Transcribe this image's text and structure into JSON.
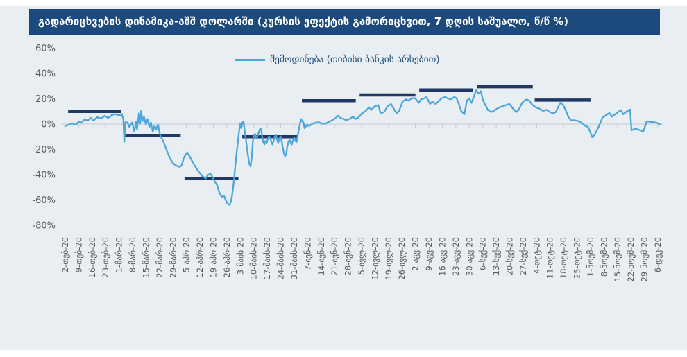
{
  "title": "გადარიცხვების დინამიკა-აშშ დოლარში (კურსის ეფექტის გამორიცხვით, 7 დღის საშუალო, წ/წ %)",
  "legend": {
    "label": "შემოდინება (თიბისი ბანკის არხებით)"
  },
  "colors": {
    "page": "#ffffff",
    "background": "#e9eef3",
    "title_bar": "#1d4a7c",
    "title_text": "#ffffff",
    "series_line": "#4ba6d9",
    "avg_segment": "#1f3864",
    "axis_text": "#595959",
    "axis_line": "#c3cad1",
    "legend_text": "#1f4e79"
  },
  "chart_data": {
    "type": "line",
    "title": "გადარიცხვების დინამიკა-აშშ დოლარში (კურსის ეფექტის გამორიცხვით, 7 დღის საშუალო, წ/წ %)",
    "legend_position": "top-center",
    "grid": "zero-line-only",
    "y_tick_suffix": "%",
    "y_ticks": [
      60,
      40,
      20,
      0,
      -20,
      -40,
      -60,
      -80
    ],
    "ylim": [
      -80,
      65
    ],
    "x_unit": "days from first label (weekly tick spacing = 7 days)",
    "x_tick_labels": [
      "2-თებ-20",
      "9-თებ-20",
      "16-თებ-20",
      "23-თებ-20",
      "1-მარ-20",
      "8-მარ-20",
      "15-მარ-20",
      "22-მარ-20",
      "29-მარ-20",
      "5-აპრ-20",
      "12-აპრ-20",
      "19-აპრ-20",
      "26-აპრ-20",
      "3-მაის-20",
      "10-მაის-20",
      "17-მაის-20",
      "24-მაის-20",
      "31-მაის-20",
      "7-ივნ-20",
      "14-ივნ-20",
      "21-ივნ-20",
      "28-ივნ-20",
      "5-ივლ-20",
      "12-ივლ-20",
      "19-ივლ-20",
      "26-ივლ-20",
      "2-აგვ-20",
      "9-აგვ-20",
      "16-აგვ-20",
      "23-აგვ-20",
      "30-აგვ-20",
      "6-სექ-20",
      "13-სექ-20",
      "20-სექ-20",
      "27-სექ-20",
      "4-ოქტ-20",
      "11-ოქტ-20",
      "18-ოქტ-20",
      "25-ოქტ-20",
      "1-ნოემ-20",
      "8-ნოემ-20",
      "15-ნოემ-20",
      "22-ნოემ-20",
      "29-ნოემ-20",
      "6-დეკ-20"
    ],
    "monthly_average_segments": {
      "description": "dark navy horizontal bars = monthly average level (%)",
      "color": "#1f3864",
      "segments": [
        {
          "month": "თებერვალი",
          "from_day": 1.5,
          "to_day": 29,
          "value": 10
        },
        {
          "month": "მარტი",
          "from_day": 31,
          "to_day": 60,
          "value": -9
        },
        {
          "month": "აპრილი",
          "from_day": 62,
          "to_day": 90,
          "value": -43
        },
        {
          "month": "მაისი",
          "from_day": 92,
          "to_day": 121,
          "value": -10
        },
        {
          "month": "ივნისი",
          "from_day": 123,
          "to_day": 151,
          "value": 18.5
        },
        {
          "month": "ივლისი",
          "from_day": 153,
          "to_day": 182,
          "value": 23
        },
        {
          "month": "აგვისტო",
          "from_day": 184,
          "to_day": 212,
          "value": 27
        },
        {
          "month": "სექტემბერი",
          "from_day": 214,
          "to_day": 243,
          "value": 29.5
        },
        {
          "month": "ოქტომბერი",
          "from_day": 244,
          "to_day": 273,
          "value": 19
        }
      ]
    },
    "series": [
      {
        "name": "შემოდინება (თიბისი ბანკის არხებით)",
        "color": "#4ba6d9",
        "points": [
          [
            0,
            -1.5
          ],
          [
            1.8,
            -0.5
          ],
          [
            3.6,
            0.5
          ],
          [
            5.4,
            -0.5
          ],
          [
            7.2,
            2.2
          ],
          [
            8.3,
            1
          ],
          [
            10.1,
            3.8
          ],
          [
            11.5,
            2.7
          ],
          [
            13.3,
            4.9
          ],
          [
            14.7,
            2.7
          ],
          [
            16.5,
            5.5
          ],
          [
            18.7,
            4.4
          ],
          [
            20.5,
            6.6
          ],
          [
            22.3,
            4.9
          ],
          [
            24.1,
            7.1
          ],
          [
            26.2,
            7.8
          ],
          [
            28,
            6.8
          ],
          [
            29.4,
            8
          ],
          [
            30.2,
            4
          ],
          [
            30.7,
            -14
          ],
          [
            31.2,
            1.5
          ],
          [
            32.3,
            1.3
          ],
          [
            33.4,
            -2.4
          ],
          [
            34.8,
            1.3
          ],
          [
            35.9,
            -6
          ],
          [
            36.9,
            2.2
          ],
          [
            37.3,
            -4.2
          ],
          [
            38.3,
            8.6
          ],
          [
            38.9,
            0.4
          ],
          [
            39.5,
            10.8
          ],
          [
            40.1,
            2.2
          ],
          [
            40.9,
            5.9
          ],
          [
            41.9,
            -0.4
          ],
          [
            42.8,
            4
          ],
          [
            43.7,
            -2.4
          ],
          [
            44.5,
            1.3
          ],
          [
            45.5,
            -6
          ],
          [
            46.4,
            -1.5
          ],
          [
            47.3,
            -4.2
          ],
          [
            48.1,
            -0.4
          ],
          [
            49.1,
            -7
          ],
          [
            49.6,
            -9.7
          ],
          [
            50.9,
            -13.3
          ],
          [
            52,
            -17.9
          ],
          [
            53.2,
            -22.4
          ],
          [
            54.4,
            -27
          ],
          [
            55.6,
            -30.1
          ],
          [
            56.8,
            -32
          ],
          [
            58,
            -33
          ],
          [
            59.2,
            -33.8
          ],
          [
            60.4,
            -33
          ],
          [
            61.6,
            -27
          ],
          [
            62.8,
            -23.4
          ],
          [
            63.4,
            -22.4
          ],
          [
            64.6,
            -25.2
          ],
          [
            65.8,
            -28.8
          ],
          [
            67,
            -32
          ],
          [
            67.9,
            -34.3
          ],
          [
            68.8,
            -36.5
          ],
          [
            71.2,
            -41.1
          ],
          [
            73,
            -42.9
          ],
          [
            74.2,
            -40.2
          ],
          [
            75.4,
            -39.3
          ],
          [
            76.6,
            -42
          ],
          [
            77.8,
            -45.6
          ],
          [
            79,
            -48.4
          ],
          [
            80.2,
            -54.8
          ],
          [
            81.4,
            -57.5
          ],
          [
            82.5,
            -56.6
          ],
          [
            83.2,
            -59.3
          ],
          [
            84.3,
            -63
          ],
          [
            85.5,
            -63.9
          ],
          [
            86.1,
            -61.2
          ],
          [
            86.7,
            -56.6
          ],
          [
            87.3,
            -49.3
          ],
          [
            87.9,
            -41.1
          ],
          [
            88.5,
            -31.1
          ],
          [
            89.1,
            -21.9
          ],
          [
            89.7,
            -14.6
          ],
          [
            90.3,
            -6
          ],
          [
            90.9,
            0.4
          ],
          [
            91.5,
            -3.3
          ],
          [
            92.1,
            1.3
          ],
          [
            92.7,
            2.2
          ],
          [
            93.3,
            -6
          ],
          [
            93.9,
            -12.4
          ],
          [
            94.5,
            -19.7
          ],
          [
            95.1,
            -26.1
          ],
          [
            95.7,
            -31.6
          ],
          [
            96.3,
            -33.4
          ],
          [
            96.9,
            -27
          ],
          [
            97.5,
            -14.2
          ],
          [
            98.1,
            -8.8
          ],
          [
            98.7,
            -7.8
          ],
          [
            99.3,
            -11.5
          ],
          [
            99.9,
            -9.7
          ],
          [
            101.1,
            -4.2
          ],
          [
            101.7,
            -3.3
          ],
          [
            102.3,
            -9.7
          ],
          [
            102.9,
            -14.2
          ],
          [
            103.5,
            -16.1
          ],
          [
            104.1,
            -13.3
          ],
          [
            104.7,
            -15.2
          ],
          [
            105.3,
            -11.5
          ],
          [
            105.9,
            -9.7
          ],
          [
            106.5,
            -10.6
          ],
          [
            107.1,
            -14.2
          ],
          [
            107.7,
            -16.1
          ],
          [
            108.3,
            -13.3
          ],
          [
            108.9,
            -9.7
          ],
          [
            109.5,
            -8.8
          ],
          [
            110.1,
            -12.4
          ],
          [
            110.7,
            -15.2
          ],
          [
            111.3,
            -11.5
          ],
          [
            111.9,
            -9.7
          ],
          [
            112.4,
            -13.3
          ],
          [
            113,
            -17.9
          ],
          [
            113.6,
            -22.5
          ],
          [
            114.2,
            -25.2
          ],
          [
            114.8,
            -24.3
          ],
          [
            115.4,
            -17.9
          ],
          [
            116,
            -14.2
          ],
          [
            116.6,
            -12.4
          ],
          [
            117.2,
            -15.2
          ],
          [
            117.8,
            -16.1
          ],
          [
            118.4,
            -12.4
          ],
          [
            119,
            -10.6
          ],
          [
            119.6,
            -13.3
          ],
          [
            120.2,
            -14.2
          ],
          [
            120.8,
            -9.7
          ],
          [
            121.4,
            -4.2
          ],
          [
            122,
            0.4
          ],
          [
            122.6,
            4
          ],
          [
            123.2,
            2
          ],
          [
            123.8,
            1.3
          ],
          [
            124.4,
            -3.3
          ],
          [
            125.6,
            -0.5
          ],
          [
            126.8,
            -1.5
          ],
          [
            128.6,
            0.4
          ],
          [
            130.4,
            1.3
          ],
          [
            132.2,
            1.3
          ],
          [
            133.4,
            0.4
          ],
          [
            135.2,
            0.4
          ],
          [
            136.4,
            1.3
          ],
          [
            138.8,
            3.1
          ],
          [
            140.6,
            4.9
          ],
          [
            141.8,
            6.7
          ],
          [
            143,
            4.9
          ],
          [
            144.8,
            4
          ],
          [
            146,
            3.1
          ],
          [
            147.8,
            4
          ],
          [
            149.6,
            5.9
          ],
          [
            150.8,
            4
          ],
          [
            152,
            4.9
          ],
          [
            154.4,
            8.6
          ],
          [
            156.1,
            10.4
          ],
          [
            157.9,
            13.2
          ],
          [
            159.1,
            11.3
          ],
          [
            160.9,
            14.1
          ],
          [
            162.7,
            15
          ],
          [
            163.9,
            8.6
          ],
          [
            165.7,
            9.5
          ],
          [
            167.5,
            14.1
          ],
          [
            169.3,
            15.9
          ],
          [
            171.1,
            11.3
          ],
          [
            172.3,
            8.6
          ],
          [
            173.5,
            10.4
          ],
          [
            175.3,
            17.7
          ],
          [
            177.1,
            19.6
          ],
          [
            178.3,
            18.6
          ],
          [
            180.1,
            20.4
          ],
          [
            181.9,
            20.4
          ],
          [
            183.7,
            16.8
          ],
          [
            184.9,
            19.6
          ],
          [
            186.7,
            20.4
          ],
          [
            187.8,
            21.4
          ],
          [
            189.6,
            15.9
          ],
          [
            190.8,
            17.7
          ],
          [
            192.6,
            15.9
          ],
          [
            194.4,
            18.6
          ],
          [
            195.6,
            20.4
          ],
          [
            197.4,
            21.4
          ],
          [
            198.6,
            20.4
          ],
          [
            200.4,
            19.6
          ],
          [
            202.2,
            21.4
          ],
          [
            203.4,
            20.4
          ],
          [
            204.6,
            15.9
          ],
          [
            205.8,
            10.4
          ],
          [
            207.4,
            7.7
          ],
          [
            208.8,
            18.6
          ],
          [
            210,
            20.4
          ],
          [
            211.2,
            16.8
          ],
          [
            213.6,
            26.9
          ],
          [
            214.8,
            24.1
          ],
          [
            216,
            26
          ],
          [
            217.2,
            18.6
          ],
          [
            218.4,
            15
          ],
          [
            219.6,
            11.3
          ],
          [
            221.4,
            9.5
          ],
          [
            222.6,
            10.4
          ],
          [
            224.4,
            12.2
          ],
          [
            225.6,
            13.2
          ],
          [
            227.4,
            14.1
          ],
          [
            229.1,
            15
          ],
          [
            230.9,
            15.9
          ],
          [
            232.7,
            12.2
          ],
          [
            234.5,
            9.5
          ],
          [
            235.7,
            11.3
          ],
          [
            237.5,
            16.8
          ],
          [
            238.7,
            18.6
          ],
          [
            239.9,
            19.5
          ],
          [
            241.1,
            18.6
          ],
          [
            242.9,
            15
          ],
          [
            244.7,
            13.2
          ],
          [
            246.5,
            12.2
          ],
          [
            248.3,
            10.4
          ],
          [
            250.1,
            11.3
          ],
          [
            251.9,
            9.5
          ],
          [
            253.7,
            8.6
          ],
          [
            254.9,
            9.5
          ],
          [
            257.3,
            16.8
          ],
          [
            258.5,
            15.9
          ],
          [
            260.3,
            10.4
          ],
          [
            261.4,
            5.9
          ],
          [
            262.7,
            3.1
          ],
          [
            264.9,
            3
          ],
          [
            267.4,
            2
          ],
          [
            270.3,
            -1.5
          ],
          [
            271.7,
            -2.2
          ],
          [
            273.9,
            -10.4
          ],
          [
            275.3,
            -8
          ],
          [
            277.4,
            -1.5
          ],
          [
            279.2,
            5
          ],
          [
            281,
            7
          ],
          [
            282.8,
            8.8
          ],
          [
            284.2,
            6
          ],
          [
            287.1,
            9.3
          ],
          [
            288.9,
            11
          ],
          [
            290,
            7.7
          ],
          [
            291.8,
            10
          ],
          [
            293.6,
            11.5
          ],
          [
            294.3,
            -5
          ],
          [
            296.1,
            -3.5
          ],
          [
            297.9,
            -4.4
          ],
          [
            300.4,
            -6
          ],
          [
            302.2,
            2.2
          ],
          [
            304,
            1.8
          ],
          [
            305.8,
            1.5
          ],
          [
            307.6,
            1
          ],
          [
            308.6,
            0
          ],
          [
            309.3,
            -0.5
          ]
        ]
      }
    ]
  }
}
